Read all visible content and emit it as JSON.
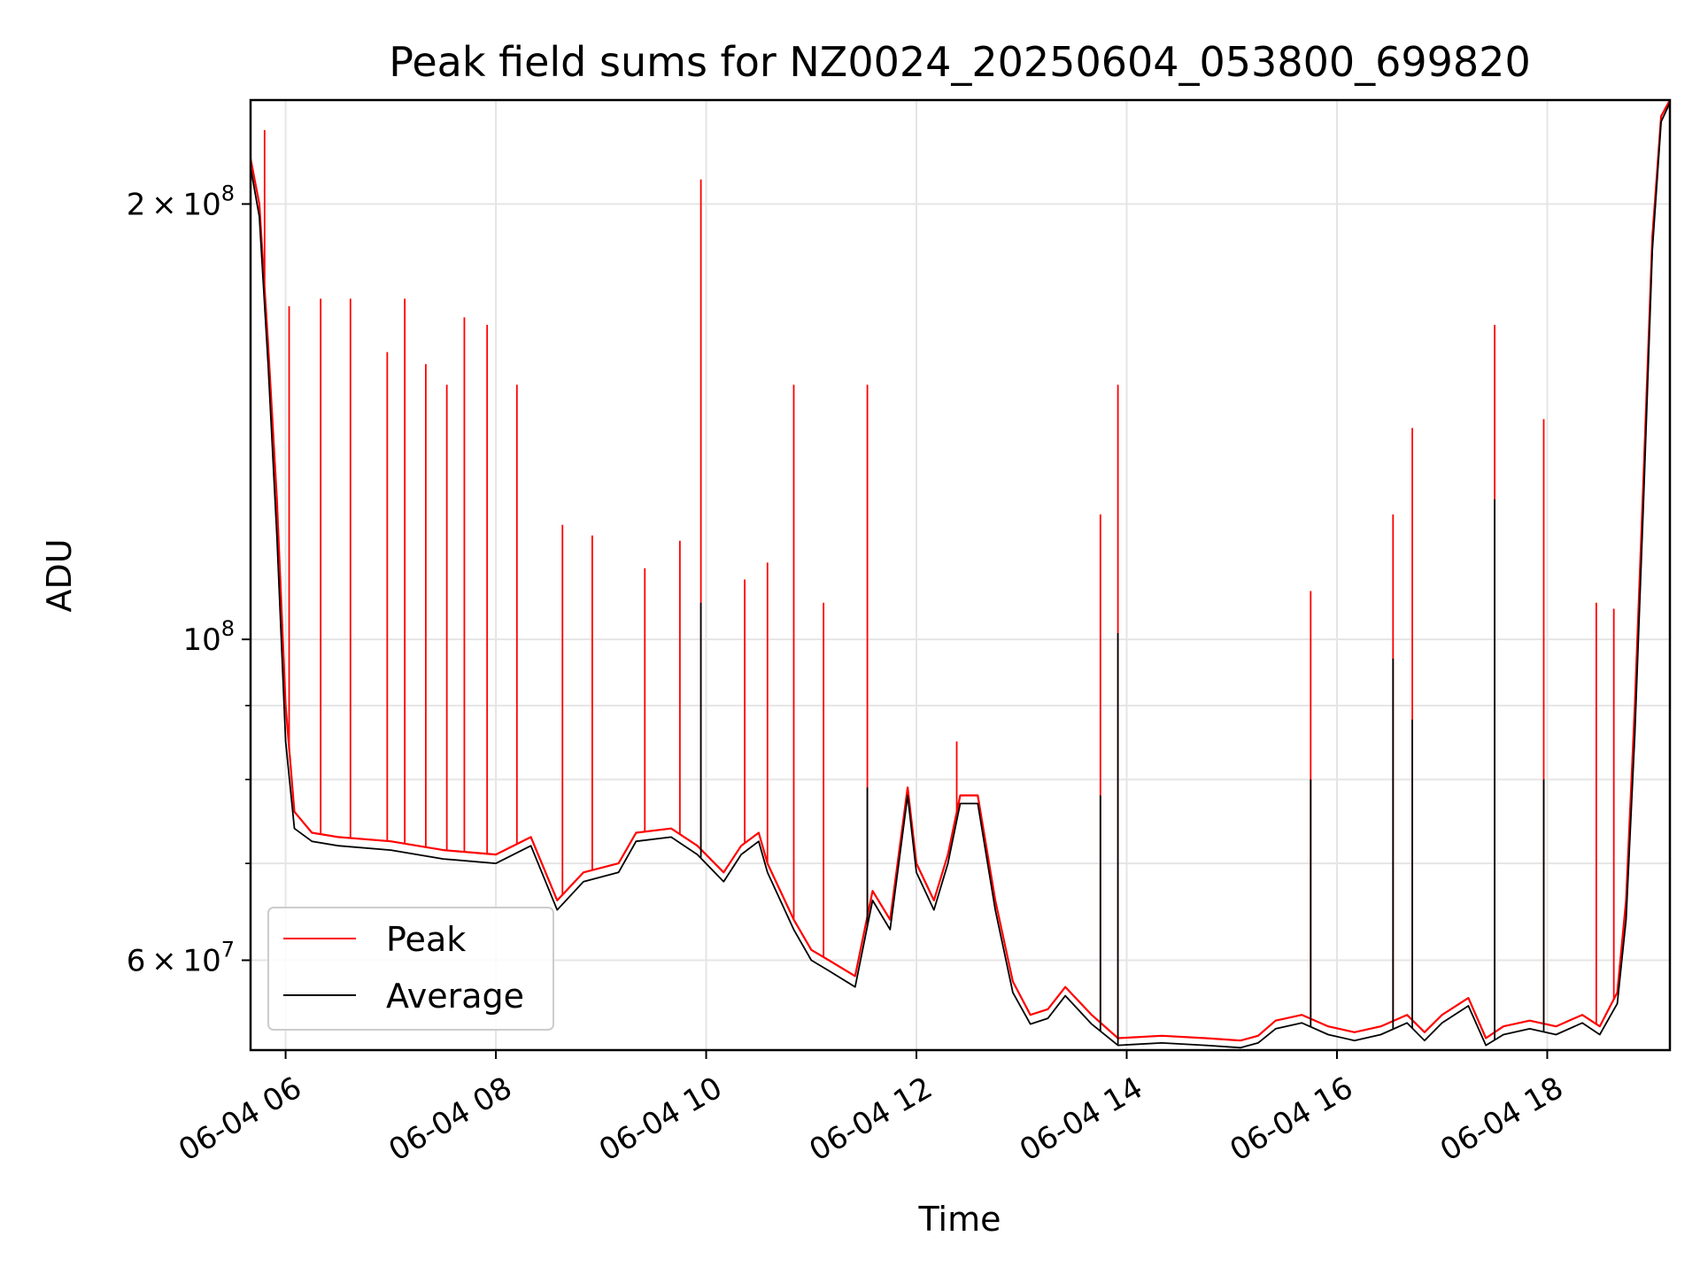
{
  "chart_data": {
    "type": "line",
    "title": "Peak field sums for NZ0024_20250604_053800_699820",
    "xlabel": "Time",
    "ylabel": "ADU",
    "yscale": "log",
    "grid": true,
    "legend_placement": "lower-left",
    "xlim": [
      "2025-06-04 05:40",
      "2025-06-04 19:10"
    ],
    "ylim": [
      52000000,
      236000000
    ],
    "x_ticks": [
      {
        "label": "06-04 06",
        "time": "2025-06-04 06:00"
      },
      {
        "label": "06-04 08",
        "time": "2025-06-04 08:00"
      },
      {
        "label": "06-04 10",
        "time": "2025-06-04 10:00"
      },
      {
        "label": "06-04 12",
        "time": "2025-06-04 12:00"
      },
      {
        "label": "06-04 14",
        "time": "2025-06-04 14:00"
      },
      {
        "label": "06-04 16",
        "time": "2025-06-04 16:00"
      },
      {
        "label": "06-04 18",
        "time": "2025-06-04 18:00"
      }
    ],
    "y_ticks_major": [
      {
        "value": 60000000,
        "mantissa": "6",
        "exponent": "7"
      },
      {
        "value": 100000000,
        "mantissa": "",
        "exponent": "8"
      },
      {
        "value": 200000000,
        "mantissa": "2",
        "exponent": "8"
      }
    ],
    "y_ticks_minor": [
      70000000,
      80000000,
      90000000
    ],
    "series": [
      {
        "name": "Peak",
        "color": "#ff0000",
        "points": [
          [
            "2025-06-04 05:40",
            215000000
          ],
          [
            "2025-06-04 05:45",
            200000000
          ],
          [
            "2025-06-04 05:50",
            160000000
          ],
          [
            "2025-06-04 05:55",
            125000000
          ],
          [
            "2025-06-04 06:00",
            90000000
          ],
          [
            "2025-06-04 06:05",
            76000000
          ],
          [
            "2025-06-04 06:15",
            73500000
          ],
          [
            "2025-06-04 06:30",
            73000000
          ],
          [
            "2025-06-04 07:00",
            72500000
          ],
          [
            "2025-06-04 07:30",
            71500000
          ],
          [
            "2025-06-04 08:00",
            71000000
          ],
          [
            "2025-06-04 08:20",
            73000000
          ],
          [
            "2025-06-04 08:35",
            66000000
          ],
          [
            "2025-06-04 08:50",
            69000000
          ],
          [
            "2025-06-04 09:10",
            70000000
          ],
          [
            "2025-06-04 09:20",
            73500000
          ],
          [
            "2025-06-04 09:40",
            74000000
          ],
          [
            "2025-06-04 09:55",
            72000000
          ],
          [
            "2025-06-04 10:10",
            69000000
          ],
          [
            "2025-06-04 10:20",
            72000000
          ],
          [
            "2025-06-04 10:30",
            73500000
          ],
          [
            "2025-06-04 10:35",
            70000000
          ],
          [
            "2025-06-04 10:50",
            64000000
          ],
          [
            "2025-06-04 11:00",
            61000000
          ],
          [
            "2025-06-04 11:10",
            60000000
          ],
          [
            "2025-06-04 11:25",
            58500000
          ],
          [
            "2025-06-04 11:35",
            67000000
          ],
          [
            "2025-06-04 11:45",
            64000000
          ],
          [
            "2025-06-04 11:55",
            79000000
          ],
          [
            "2025-06-04 12:00",
            70000000
          ],
          [
            "2025-06-04 12:10",
            66000000
          ],
          [
            "2025-06-04 12:18",
            71000000
          ],
          [
            "2025-06-04 12:25",
            78000000
          ],
          [
            "2025-06-04 12:35",
            78000000
          ],
          [
            "2025-06-04 12:45",
            66000000
          ],
          [
            "2025-06-04 12:55",
            58000000
          ],
          [
            "2025-06-04 13:05",
            55000000
          ],
          [
            "2025-06-04 13:15",
            55500000
          ],
          [
            "2025-06-04 13:25",
            57500000
          ],
          [
            "2025-06-04 13:40",
            55000000
          ],
          [
            "2025-06-04 13:55",
            53000000
          ],
          [
            "2025-06-04 14:20",
            53200000
          ],
          [
            "2025-06-04 14:45",
            53000000
          ],
          [
            "2025-06-04 15:05",
            52800000
          ],
          [
            "2025-06-04 15:15",
            53200000
          ],
          [
            "2025-06-04 15:25",
            54500000
          ],
          [
            "2025-06-04 15:40",
            55000000
          ],
          [
            "2025-06-04 15:55",
            54000000
          ],
          [
            "2025-06-04 16:10",
            53500000
          ],
          [
            "2025-06-04 16:25",
            54000000
          ],
          [
            "2025-06-04 16:40",
            55000000
          ],
          [
            "2025-06-04 16:50",
            53500000
          ],
          [
            "2025-06-04 17:00",
            55000000
          ],
          [
            "2025-06-04 17:15",
            56500000
          ],
          [
            "2025-06-04 17:25",
            53000000
          ],
          [
            "2025-06-04 17:35",
            54000000
          ],
          [
            "2025-06-04 17:50",
            54500000
          ],
          [
            "2025-06-04 18:05",
            54000000
          ],
          [
            "2025-06-04 18:20",
            55000000
          ],
          [
            "2025-06-04 18:30",
            54000000
          ],
          [
            "2025-06-04 18:40",
            57000000
          ],
          [
            "2025-06-04 18:45",
            66000000
          ],
          [
            "2025-06-04 18:50",
            90000000
          ],
          [
            "2025-06-04 18:55",
            130000000
          ],
          [
            "2025-06-04 19:00",
            190000000
          ],
          [
            "2025-06-04 19:05",
            230000000
          ],
          [
            "2025-06-04 19:10",
            236000000
          ]
        ],
        "spikes": [
          [
            "2025-06-04 05:48",
            225000000
          ],
          [
            "2025-06-04 06:02",
            170000000
          ],
          [
            "2025-06-04 06:20",
            172000000
          ],
          [
            "2025-06-04 06:37",
            172000000
          ],
          [
            "2025-06-04 06:58",
            158000000
          ],
          [
            "2025-06-04 07:08",
            172000000
          ],
          [
            "2025-06-04 07:20",
            155000000
          ],
          [
            "2025-06-04 07:32",
            150000000
          ],
          [
            "2025-06-04 07:42",
            167000000
          ],
          [
            "2025-06-04 07:55",
            165000000
          ],
          [
            "2025-06-04 08:12",
            150000000
          ],
          [
            "2025-06-04 08:38",
            120000000
          ],
          [
            "2025-06-04 08:55",
            118000000
          ],
          [
            "2025-06-04 09:25",
            112000000
          ],
          [
            "2025-06-04 09:45",
            117000000
          ],
          [
            "2025-06-04 09:57",
            208000000
          ],
          [
            "2025-06-04 10:22",
            110000000
          ],
          [
            "2025-06-04 10:35",
            113000000
          ],
          [
            "2025-06-04 10:50",
            150000000
          ],
          [
            "2025-06-04 11:07",
            106000000
          ],
          [
            "2025-06-04 11:32",
            150000000
          ],
          [
            "2025-06-04 12:23",
            85000000
          ],
          [
            "2025-06-04 13:45",
            122000000
          ],
          [
            "2025-06-04 13:55",
            150000000
          ],
          [
            "2025-06-04 15:45",
            108000000
          ],
          [
            "2025-06-04 16:32",
            122000000
          ],
          [
            "2025-06-04 16:43",
            140000000
          ],
          [
            "2025-06-04 17:30",
            165000000
          ],
          [
            "2025-06-04 17:58",
            142000000
          ],
          [
            "2025-06-04 18:28",
            106000000
          ],
          [
            "2025-06-04 18:38",
            105000000
          ]
        ]
      },
      {
        "name": "Average",
        "color": "#000000",
        "points": [
          [
            "2025-06-04 05:40",
            212000000
          ],
          [
            "2025-06-04 05:45",
            196000000
          ],
          [
            "2025-06-04 05:50",
            155000000
          ],
          [
            "2025-06-04 05:55",
            118000000
          ],
          [
            "2025-06-04 06:00",
            85000000
          ],
          [
            "2025-06-04 06:05",
            74000000
          ],
          [
            "2025-06-04 06:15",
            72500000
          ],
          [
            "2025-06-04 06:30",
            72000000
          ],
          [
            "2025-06-04 07:00",
            71500000
          ],
          [
            "2025-06-04 07:30",
            70500000
          ],
          [
            "2025-06-04 08:00",
            70000000
          ],
          [
            "2025-06-04 08:20",
            72000000
          ],
          [
            "2025-06-04 08:35",
            65000000
          ],
          [
            "2025-06-04 08:50",
            68000000
          ],
          [
            "2025-06-04 09:10",
            69000000
          ],
          [
            "2025-06-04 09:20",
            72500000
          ],
          [
            "2025-06-04 09:40",
            73000000
          ],
          [
            "2025-06-04 09:55",
            71000000
          ],
          [
            "2025-06-04 10:10",
            68000000
          ],
          [
            "2025-06-04 10:20",
            71000000
          ],
          [
            "2025-06-04 10:30",
            72500000
          ],
          [
            "2025-06-04 10:35",
            69000000
          ],
          [
            "2025-06-04 10:50",
            63000000
          ],
          [
            "2025-06-04 11:00",
            60000000
          ],
          [
            "2025-06-04 11:10",
            59000000
          ],
          [
            "2025-06-04 11:25",
            57500000
          ],
          [
            "2025-06-04 11:35",
            66000000
          ],
          [
            "2025-06-04 11:45",
            63000000
          ],
          [
            "2025-06-04 11:55",
            78000000
          ],
          [
            "2025-06-04 12:00",
            69000000
          ],
          [
            "2025-06-04 12:10",
            65000000
          ],
          [
            "2025-06-04 12:18",
            70000000
          ],
          [
            "2025-06-04 12:25",
            77000000
          ],
          [
            "2025-06-04 12:35",
            77000000
          ],
          [
            "2025-06-04 12:45",
            65000000
          ],
          [
            "2025-06-04 12:55",
            57000000
          ],
          [
            "2025-06-04 13:05",
            54200000
          ],
          [
            "2025-06-04 13:15",
            54700000
          ],
          [
            "2025-06-04 13:25",
            56700000
          ],
          [
            "2025-06-04 13:40",
            54200000
          ],
          [
            "2025-06-04 13:55",
            52400000
          ],
          [
            "2025-06-04 14:20",
            52600000
          ],
          [
            "2025-06-04 14:45",
            52400000
          ],
          [
            "2025-06-04 15:05",
            52200000
          ],
          [
            "2025-06-04 15:15",
            52600000
          ],
          [
            "2025-06-04 15:25",
            53800000
          ],
          [
            "2025-06-04 15:40",
            54300000
          ],
          [
            "2025-06-04 15:55",
            53300000
          ],
          [
            "2025-06-04 16:10",
            52800000
          ],
          [
            "2025-06-04 16:25",
            53300000
          ],
          [
            "2025-06-04 16:40",
            54300000
          ],
          [
            "2025-06-04 16:50",
            52800000
          ],
          [
            "2025-06-04 17:00",
            54300000
          ],
          [
            "2025-06-04 17:15",
            55800000
          ],
          [
            "2025-06-04 17:25",
            52400000
          ],
          [
            "2025-06-04 17:35",
            53300000
          ],
          [
            "2025-06-04 17:50",
            53800000
          ],
          [
            "2025-06-04 18:05",
            53300000
          ],
          [
            "2025-06-04 18:20",
            54300000
          ],
          [
            "2025-06-04 18:30",
            53300000
          ],
          [
            "2025-06-04 18:40",
            56000000
          ],
          [
            "2025-06-04 18:45",
            64000000
          ],
          [
            "2025-06-04 18:50",
            86000000
          ],
          [
            "2025-06-04 18:55",
            125000000
          ],
          [
            "2025-06-04 19:00",
            186000000
          ],
          [
            "2025-06-04 19:05",
            228000000
          ],
          [
            "2025-06-04 19:10",
            235000000
          ]
        ],
        "spikes": [
          [
            "2025-06-04 09:57",
            106000000
          ],
          [
            "2025-06-04 11:32",
            79000000
          ],
          [
            "2025-06-04 13:45",
            78000000
          ],
          [
            "2025-06-04 13:55",
            101000000
          ],
          [
            "2025-06-04 15:45",
            80000000
          ],
          [
            "2025-06-04 16:32",
            97000000
          ],
          [
            "2025-06-04 16:43",
            88000000
          ],
          [
            "2025-06-04 17:30",
            125000000
          ],
          [
            "2025-06-04 17:58",
            80000000
          ]
        ]
      }
    ]
  }
}
